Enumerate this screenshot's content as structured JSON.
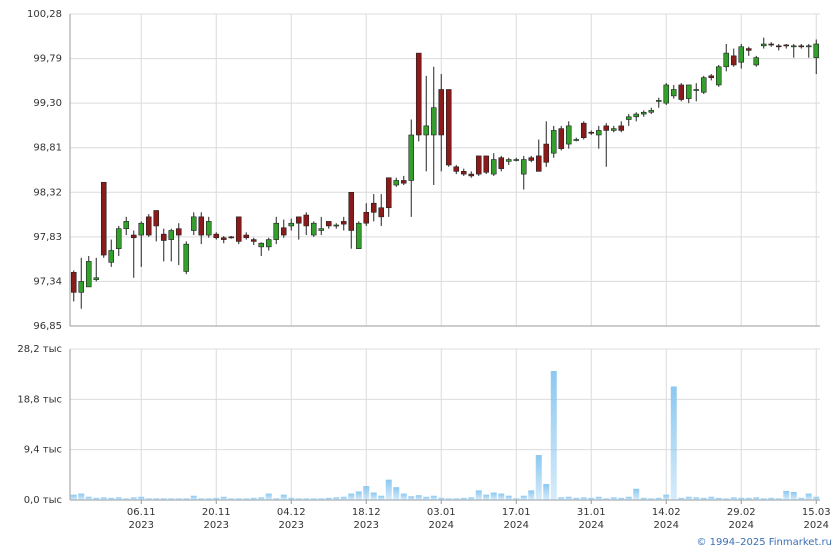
{
  "chart_data": [
    {
      "type": "candlestick",
      "up_color": "#33a02c",
      "down_color": "#8b1a1a",
      "grid": true,
      "xlim": [
        -0.5,
        99.5
      ],
      "xticks": [
        {
          "value": 9,
          "label": "06.11",
          "year": "2023"
        },
        {
          "value": 19,
          "label": "20.11",
          "year": "2023"
        },
        {
          "value": 29,
          "label": "04.12",
          "year": "2023"
        },
        {
          "value": 39,
          "label": "18.12",
          "year": "2023"
        },
        {
          "value": 49,
          "label": "03.01",
          "year": "2024"
        },
        {
          "value": 59,
          "label": "17.01",
          "year": "2024"
        },
        {
          "value": 69,
          "label": "31.01",
          "year": "2024"
        },
        {
          "value": 79,
          "label": "14.02",
          "year": "2024"
        },
        {
          "value": 89,
          "label": "29.02",
          "year": "2024"
        },
        {
          "value": 99,
          "label": "15.03",
          "year": "2024"
        }
      ],
      "ylim": [
        96.85,
        100.28
      ],
      "yticks": [
        {
          "value": 96.85,
          "label": "96,85"
        },
        {
          "value": 97.34,
          "label": "97,34"
        },
        {
          "value": 97.83,
          "label": "97,83"
        },
        {
          "value": 98.32,
          "label": "98,32"
        },
        {
          "value": 98.81,
          "label": "98,81"
        },
        {
          "value": 99.3,
          "label": "99,30"
        },
        {
          "value": 99.79,
          "label": "99,79"
        },
        {
          "value": 100.28,
          "label": "100,28"
        }
      ],
      "open": [
        97.44,
        97.22,
        97.28,
        97.36,
        98.43,
        97.55,
        97.7,
        97.92,
        97.85,
        97.85,
        98.05,
        98.12,
        97.86,
        97.8,
        97.92,
        97.45,
        97.9,
        98.05,
        97.85,
        97.86,
        97.82,
        97.83,
        98.05,
        97.85,
        97.8,
        97.72,
        97.72,
        97.8,
        97.93,
        97.95,
        98.05,
        98.07,
        97.85,
        97.9,
        98.0,
        97.95,
        98.0,
        98.32,
        97.7,
        98.1,
        98.2,
        98.15,
        98.48,
        98.4,
        98.45,
        98.45,
        99.85,
        98.95,
        98.95,
        99.45,
        99.45,
        98.6,
        98.55,
        98.52,
        98.72,
        98.72,
        98.52,
        98.7,
        98.66,
        98.68,
        98.52,
        98.7,
        98.72,
        98.85,
        98.75,
        99.02,
        98.85,
        98.9,
        99.08,
        98.98,
        98.95,
        99.05,
        99.0,
        99.05,
        99.12,
        99.15,
        99.18,
        99.2,
        99.32,
        99.3,
        99.38,
        99.5,
        99.35,
        99.45,
        99.42,
        99.6,
        99.5,
        99.7,
        99.82,
        99.75,
        99.9,
        99.72,
        99.93,
        99.95,
        99.93,
        99.94,
        99.92,
        99.93,
        99.92,
        99.8
      ],
      "high": [
        97.46,
        97.6,
        97.62,
        97.6,
        98.43,
        97.8,
        97.95,
        98.05,
        97.9,
        98.0,
        98.08,
        98.12,
        97.92,
        97.92,
        97.98,
        97.78,
        98.1,
        98.1,
        98.05,
        97.88,
        97.84,
        97.84,
        98.05,
        97.88,
        97.82,
        97.77,
        97.82,
        98.05,
        98.02,
        98.03,
        98.05,
        98.1,
        98.0,
        98.05,
        98.0,
        97.98,
        98.05,
        98.32,
        98.0,
        98.2,
        98.3,
        98.3,
        98.48,
        98.48,
        98.5,
        99.12,
        99.85,
        99.6,
        99.7,
        99.62,
        99.45,
        98.62,
        98.58,
        98.55,
        98.72,
        98.72,
        98.75,
        98.72,
        98.7,
        98.7,
        98.72,
        98.72,
        98.9,
        99.1,
        99.05,
        99.05,
        99.1,
        98.92,
        99.1,
        99.0,
        99.05,
        99.08,
        99.05,
        99.1,
        99.18,
        99.2,
        99.22,
        99.25,
        99.36,
        99.52,
        99.5,
        99.52,
        99.5,
        99.52,
        99.6,
        99.62,
        99.72,
        99.95,
        99.9,
        99.95,
        99.92,
        99.82,
        100.02,
        99.97,
        99.95,
        99.95,
        99.95,
        99.95,
        99.95,
        100.0
      ],
      "low": [
        97.12,
        97.04,
        97.28,
        97.34,
        97.6,
        97.5,
        97.62,
        97.85,
        97.38,
        97.5,
        97.83,
        97.78,
        97.56,
        97.56,
        97.52,
        97.42,
        97.85,
        97.75,
        97.82,
        97.8,
        97.76,
        97.81,
        97.75,
        97.8,
        97.74,
        97.62,
        97.68,
        97.75,
        97.82,
        97.9,
        97.8,
        97.85,
        97.83,
        97.85,
        97.92,
        97.92,
        97.9,
        97.7,
        97.7,
        97.95,
        98.0,
        97.95,
        98.05,
        98.38,
        98.4,
        98.05,
        98.88,
        98.55,
        98.4,
        98.55,
        98.6,
        98.52,
        98.5,
        98.48,
        98.5,
        98.52,
        98.5,
        98.55,
        98.62,
        98.66,
        98.35,
        98.65,
        98.55,
        98.6,
        98.7,
        98.78,
        98.8,
        98.88,
        98.9,
        98.95,
        98.8,
        98.6,
        98.98,
        98.98,
        99.05,
        99.1,
        99.15,
        99.18,
        99.25,
        99.28,
        99.35,
        99.32,
        99.3,
        99.32,
        99.4,
        99.55,
        99.48,
        99.65,
        99.7,
        99.68,
        99.82,
        99.7,
        99.9,
        99.92,
        99.88,
        99.9,
        99.8,
        99.9,
        99.8,
        99.62
      ],
      "close": [
        97.22,
        97.34,
        97.56,
        97.38,
        97.63,
        97.68,
        97.92,
        98.0,
        97.82,
        97.98,
        97.85,
        97.95,
        97.79,
        97.9,
        97.85,
        97.75,
        98.05,
        97.85,
        98.0,
        97.82,
        97.8,
        97.82,
        97.78,
        97.82,
        97.78,
        97.76,
        97.8,
        97.98,
        97.85,
        97.98,
        97.98,
        97.95,
        97.98,
        97.92,
        97.95,
        97.96,
        97.97,
        97.9,
        97.98,
        97.98,
        98.1,
        98.05,
        98.15,
        98.45,
        98.42,
        98.95,
        98.95,
        99.05,
        99.25,
        98.95,
        98.62,
        98.55,
        98.52,
        98.5,
        98.52,
        98.54,
        98.68,
        98.58,
        98.68,
        98.68,
        98.68,
        98.67,
        98.55,
        98.65,
        99.0,
        98.8,
        99.05,
        98.9,
        98.92,
        98.97,
        99.0,
        99.0,
        99.02,
        99.0,
        99.15,
        99.18,
        99.2,
        99.22,
        99.33,
        99.5,
        99.45,
        99.34,
        99.5,
        99.45,
        99.58,
        99.58,
        99.7,
        99.85,
        99.72,
        99.92,
        99.88,
        99.8,
        99.95,
        99.94,
        99.92,
        99.93,
        99.93,
        99.92,
        99.93,
        99.95
      ]
    },
    {
      "type": "bar",
      "color": "#8cc8f0",
      "grid": true,
      "ylim": [
        0,
        28.2
      ],
      "yticks": [
        {
          "value": 0,
          "label": "0,0 тыс"
        },
        {
          "value": 9.4,
          "label": "9,4 тыс"
        },
        {
          "value": 18.8,
          "label": "18,8 тыс"
        },
        {
          "value": 28.2,
          "label": "28,2 тыс"
        }
      ],
      "values": [
        1.0,
        1.2,
        0.6,
        0.4,
        0.5,
        0.4,
        0.5,
        0.3,
        0.5,
        0.6,
        0.3,
        0.3,
        0.3,
        0.3,
        0.3,
        0.3,
        0.8,
        0.3,
        0.3,
        0.4,
        0.6,
        0.3,
        0.3,
        0.3,
        0.4,
        0.5,
        1.2,
        0.3,
        1.0,
        0.4,
        0.3,
        0.3,
        0.3,
        0.3,
        0.4,
        0.5,
        0.6,
        1.2,
        1.6,
        2.6,
        1.4,
        0.8,
        3.8,
        2.4,
        1.2,
        0.7,
        0.9,
        0.6,
        0.8,
        0.4,
        0.3,
        0.3,
        0.4,
        0.5,
        1.8,
        1.0,
        1.4,
        1.2,
        0.8,
        0.3,
        0.8,
        1.8,
        8.4,
        3.0,
        24.1,
        0.5,
        0.6,
        0.4,
        0.5,
        0.4,
        0.6,
        0.3,
        0.5,
        0.4,
        0.6,
        2.1,
        0.4,
        0.3,
        0.4,
        1.0,
        21.2,
        0.4,
        0.6,
        0.5,
        0.4,
        0.6,
        0.4,
        0.3,
        0.5,
        0.4,
        0.4,
        0.5,
        0.3,
        0.4,
        0.3,
        1.7,
        1.5,
        0.4,
        1.2,
        0.6
      ]
    }
  ],
  "footer": "© 1994–2025 Finmarket.ru"
}
